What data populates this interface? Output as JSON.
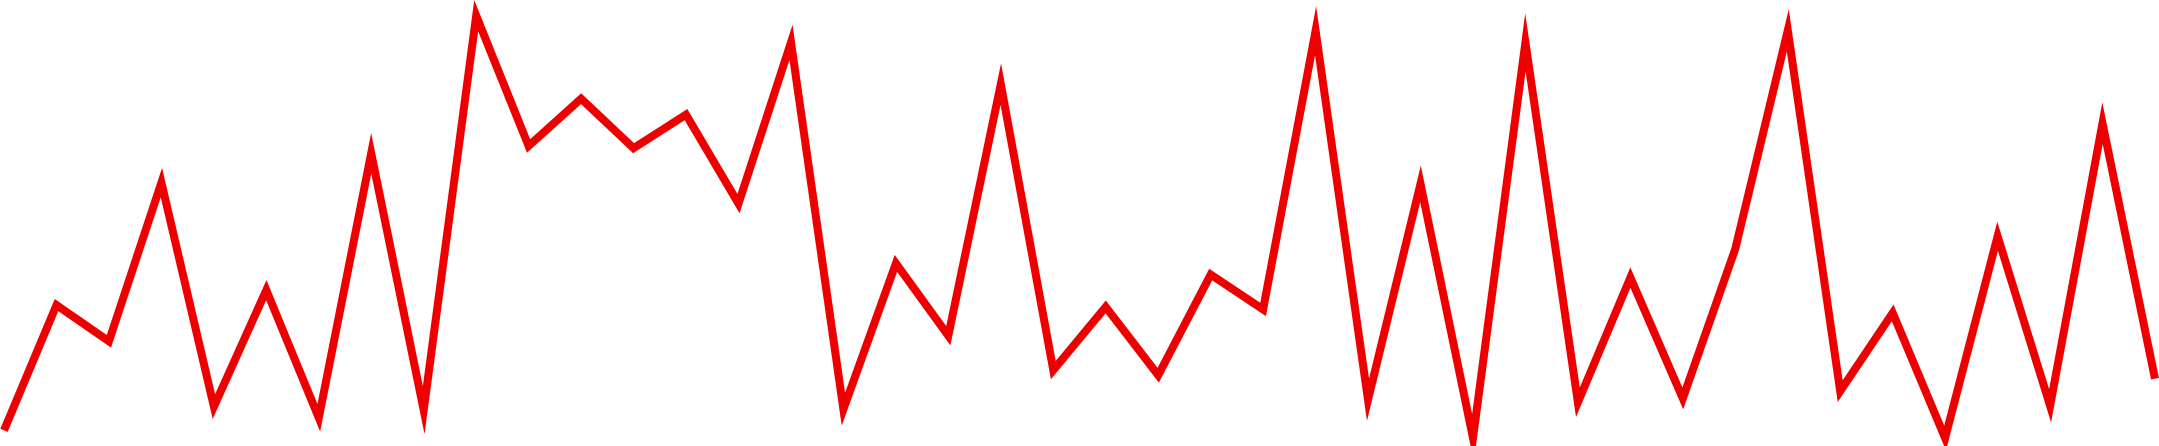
{
  "chart_data": {
    "type": "line",
    "title": "",
    "xlabel": "",
    "ylabel": "",
    "x": [
      0,
      1,
      2,
      3,
      4,
      5,
      6,
      7,
      8,
      9,
      10,
      11,
      12,
      13,
      14,
      15,
      16,
      17,
      18,
      19,
      20,
      21,
      22,
      23,
      24,
      25,
      26,
      27,
      28,
      29,
      30,
      31,
      32,
      33,
      34,
      35,
      36,
      37,
      38,
      39,
      40,
      41
    ],
    "series": [
      {
        "color": "#ee0000",
        "values": [
          0.018,
          0.309,
          0.225,
          0.594,
          0.073,
          0.344,
          0.047,
          0.662,
          0.065,
          0.982,
          0.679,
          0.789,
          0.674,
          0.752,
          0.545,
          0.92,
          0.067,
          0.406,
          0.238,
          0.823,
          0.158,
          0.305,
          0.146,
          0.38,
          0.299,
          0.947,
          0.089,
          0.591,
          0.0,
          0.92,
          0.083,
          0.373,
          0.092,
          0.44,
          0.948,
          0.109,
          0.291,
          0.0,
          0.469,
          0.075,
          0.732,
          0.138
        ]
      }
    ],
    "ylim": [
      0,
      1
    ],
    "grid": false,
    "legend": "none",
    "axes_visible": false
  }
}
